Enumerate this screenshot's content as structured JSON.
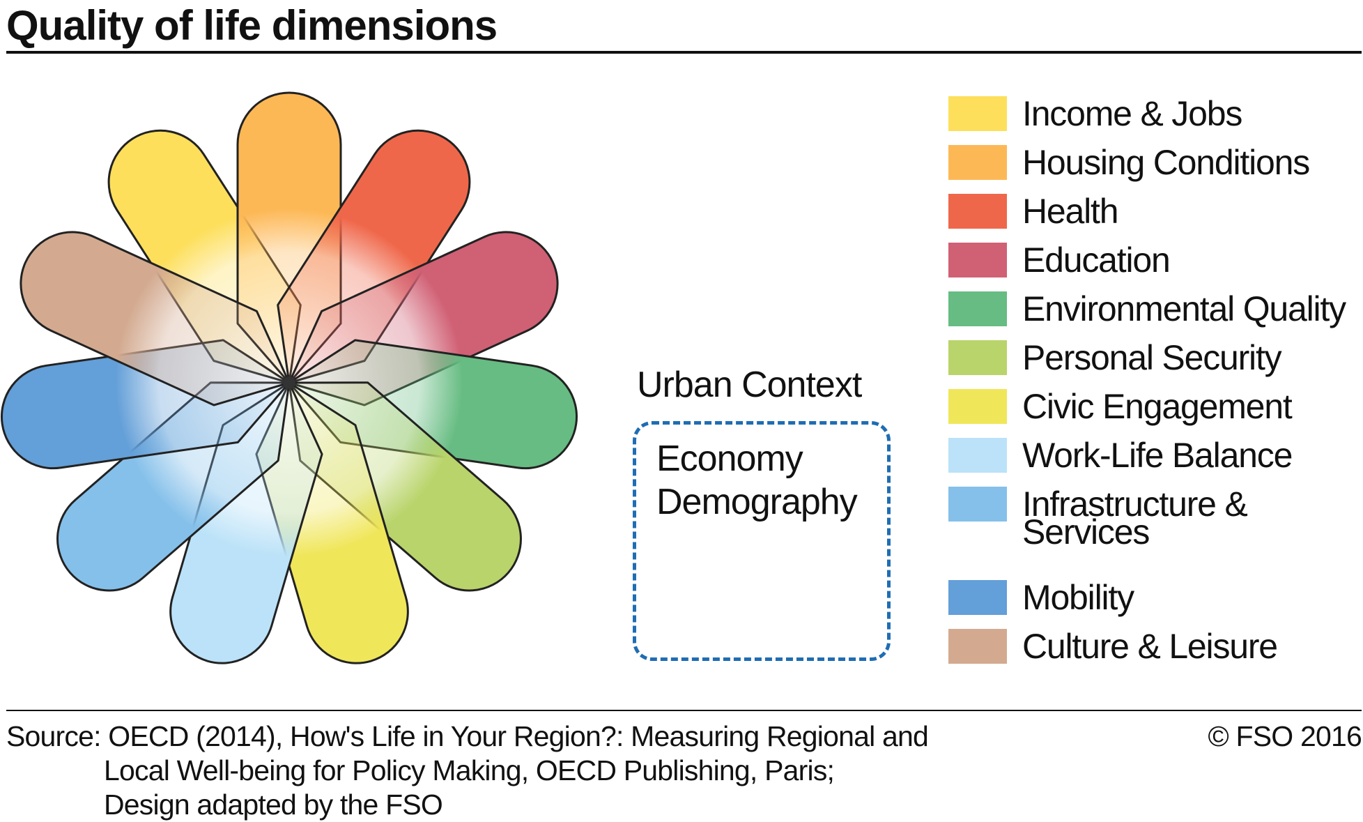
{
  "title": "Quality of life dimensions",
  "dimensions": [
    {
      "label": "Income & Jobs",
      "color": "#FDDF5C"
    },
    {
      "label": "Housing Conditions",
      "color": "#FDB856"
    },
    {
      "label": "Health",
      "color": "#EF674A"
    },
    {
      "label": "Education",
      "color": "#D06074"
    },
    {
      "label": "Environmental Quality",
      "color": "#66BC82"
    },
    {
      "label": "Personal Security",
      "color": "#B9D46A"
    },
    {
      "label": "Civic Engagement",
      "color": "#F0E65A"
    },
    {
      "label": "Work-Life Balance",
      "color": "#BBE2F8"
    },
    {
      "label": "Infrastructure & Services",
      "color": "#85C0EA"
    },
    {
      "label": "Mobility",
      "color": "#639FD8"
    },
    {
      "label": "Culture & Leisure",
      "color": "#D3AA90"
    }
  ],
  "urban_context": {
    "title": "Urban Context",
    "items": [
      "Economy",
      "Demography"
    ],
    "border_color": "#1F6DB3"
  },
  "source": {
    "line1": "Source: OECD (2014), How's Life in Your Region?: Measuring Regional and",
    "line2": "Local Well-being for Policy Making, OECD Publishing, Paris;",
    "line3": "Design adapted by the FSO"
  },
  "copyright": "© FSO 2016"
}
